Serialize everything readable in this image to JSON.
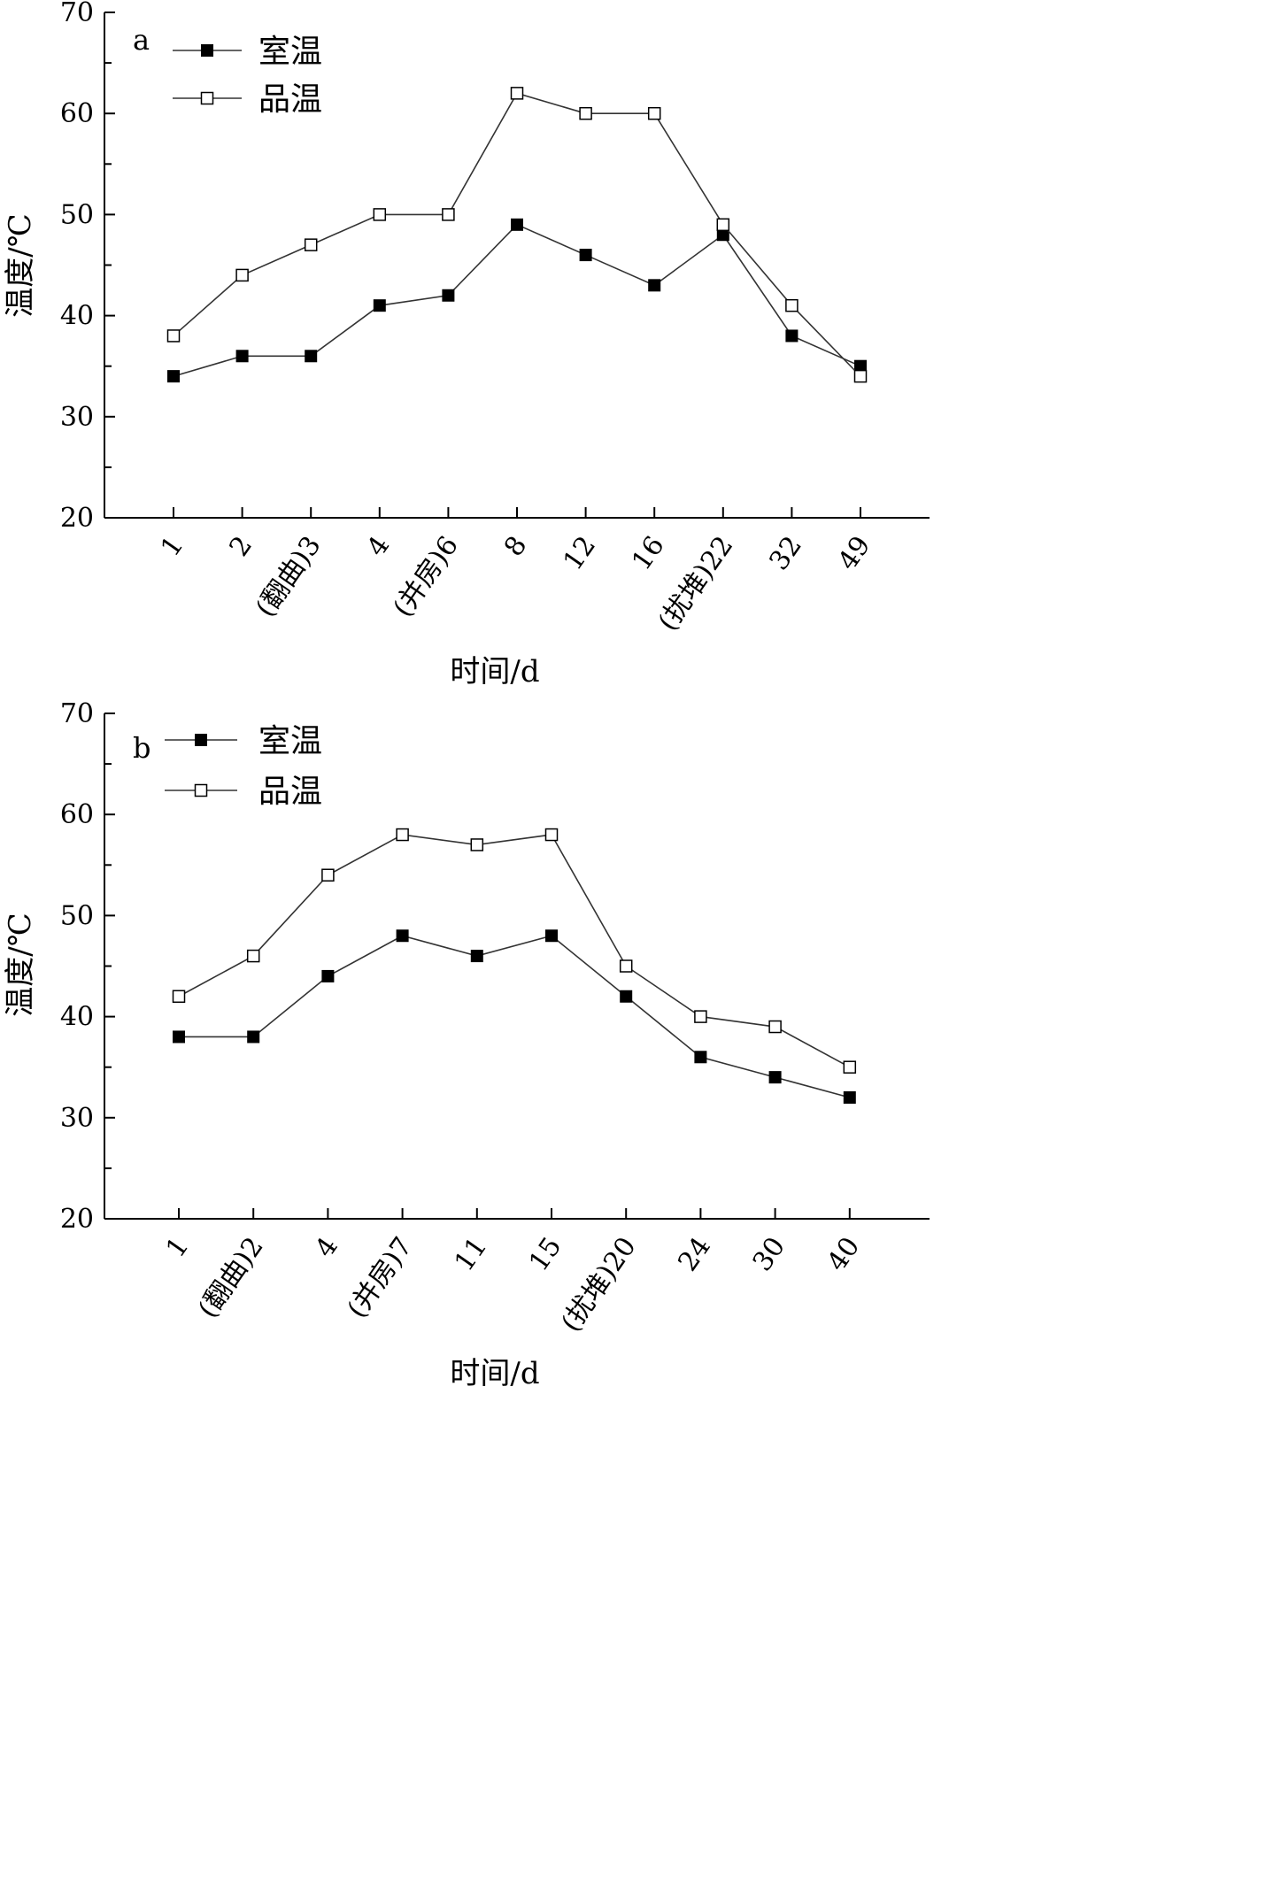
{
  "chart_data": [
    {
      "type": "line",
      "panel_label": "a",
      "categories": [
        "1",
        "2",
        "(翻曲)3",
        "4",
        "(并房)6",
        "8",
        "12",
        "16",
        "(扰堆)22",
        "32",
        "49"
      ],
      "series": [
        {
          "name": "室温",
          "marker": "filled-square",
          "values": [
            34,
            36,
            36,
            41,
            42,
            49,
            46,
            43,
            48,
            38,
            35
          ]
        },
        {
          "name": "品温",
          "marker": "open-square",
          "values": [
            38,
            44,
            47,
            50,
            50,
            62,
            60,
            60,
            49,
            41,
            34
          ]
        }
      ],
      "xlabel": "时间/d",
      "ylabel": "温度/℃",
      "ylim": [
        20,
        70
      ],
      "yticks": [
        "20",
        "30",
        "40",
        "50",
        "60",
        "70"
      ],
      "legend_position": "top-left",
      "grid": false
    },
    {
      "type": "line",
      "panel_label": "b",
      "categories": [
        "1",
        "(翻曲)2",
        "4",
        "(并房)7",
        "11",
        "15",
        "(扰堆)20",
        "24",
        "30",
        "40"
      ],
      "series": [
        {
          "name": "室温",
          "marker": "filled-square",
          "values": [
            38,
            38,
            44,
            48,
            46,
            48,
            42,
            36,
            34,
            32
          ]
        },
        {
          "name": "品温",
          "marker": "open-square",
          "values": [
            42,
            46,
            54,
            58,
            57,
            58,
            45,
            40,
            39,
            35
          ]
        }
      ],
      "xlabel": "时间/d",
      "ylabel": "温度/℃",
      "ylim": [
        20,
        70
      ],
      "yticks": [
        "20",
        "30",
        "40",
        "50",
        "60",
        "70"
      ],
      "legend_position": "top-left",
      "grid": false
    }
  ]
}
